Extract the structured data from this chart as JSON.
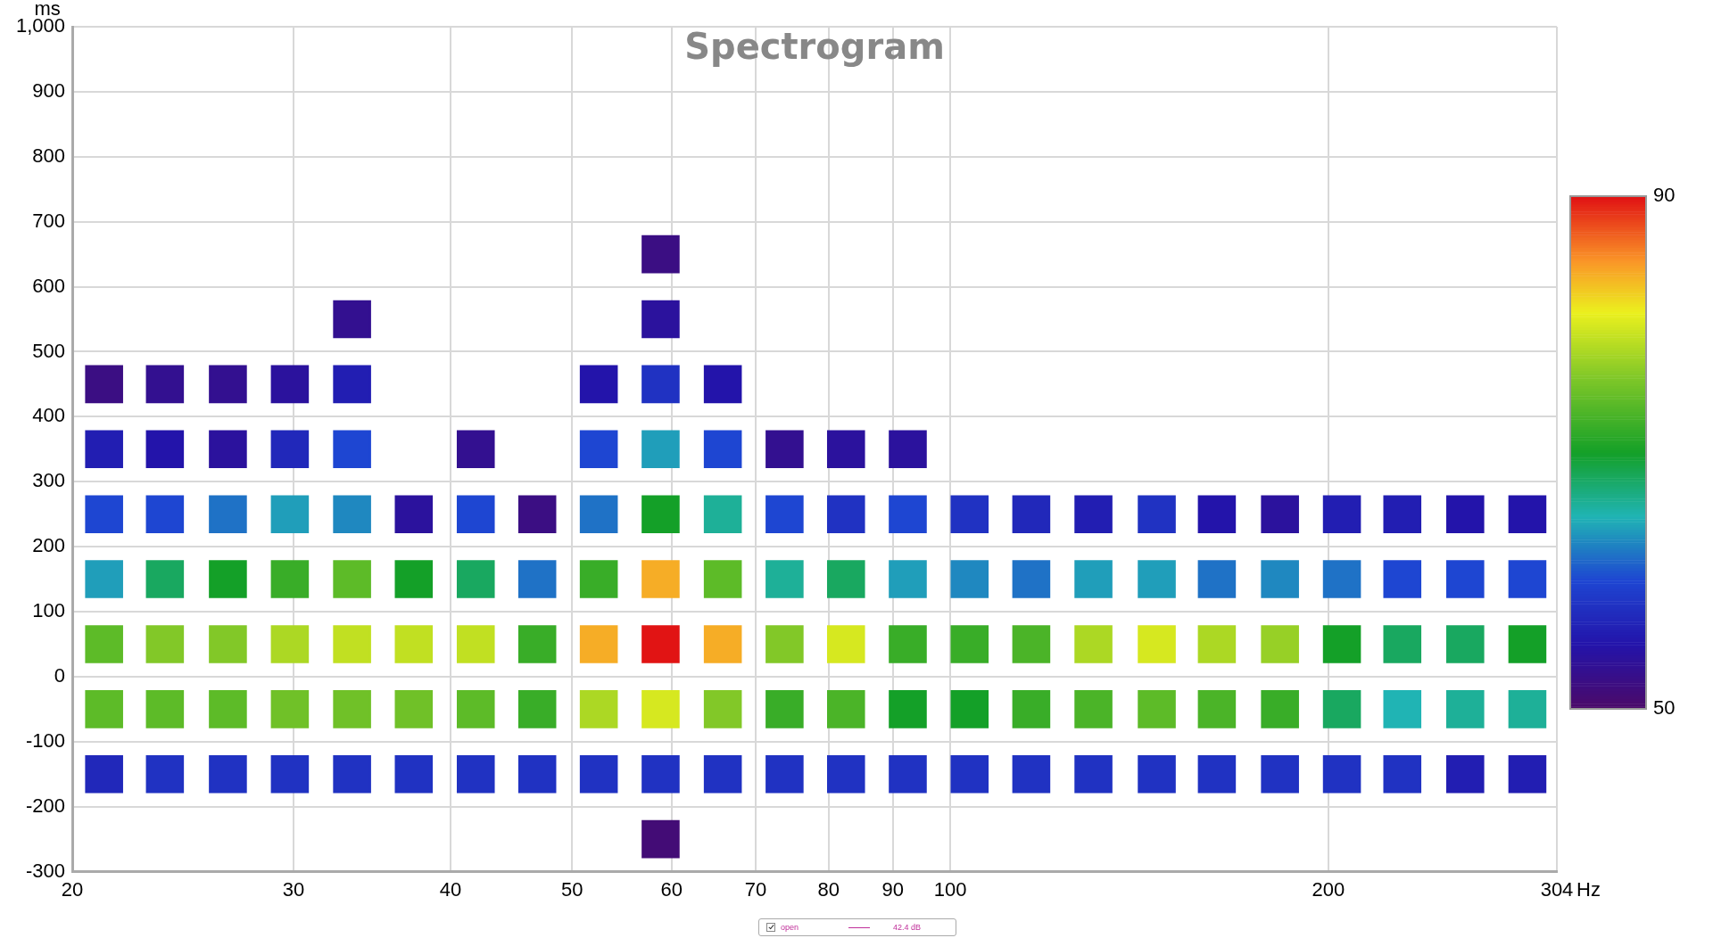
{
  "chart_data": {
    "type": "scatter",
    "title": "Spectrogram",
    "xlabel": "Hz",
    "ylabel": "ms",
    "log": "x",
    "grid": true,
    "marker": "square",
    "xlim": [
      20,
      304
    ],
    "xticks": [
      20,
      30,
      40,
      50,
      60,
      70,
      80,
      90,
      100,
      200,
      304
    ],
    "ylim": [
      -300,
      1000
    ],
    "yticks": [
      -300,
      -200,
      -100,
      0,
      100,
      200,
      300,
      400,
      500,
      600,
      700,
      800,
      900,
      {
        "value": 1000,
        "label": "1,000"
      }
    ],
    "clim": [
      50,
      90
    ],
    "cticks": [
      50,
      90
    ],
    "annotations": [
      "open",
      "42.4 dB"
    ],
    "series": [
      {
        "x": [
          58.8
        ],
        "values": [
          650
        ],
        "colors": [
          "#3b0e83"
        ],
        "cvalues": [
          52
        ]
      },
      {
        "x": [
          33.4,
          58.8
        ],
        "values": [
          550,
          550
        ],
        "colors": [
          "#331090",
          "#2b129d"
        ],
        "cvalues": [
          53,
          54
        ]
      },
      {
        "x": [
          21.2,
          23.7,
          26.6,
          29.8,
          33.4,
          52.5,
          58.8,
          65.9
        ],
        "values": [
          450,
          450,
          450,
          450,
          450,
          450,
          450,
          450
        ],
        "colors": [
          "#3b0e83",
          "#331090",
          "#331090",
          "#2b129d",
          "#221eb2",
          "#2314aa",
          "#2032c2",
          "#2314aa"
        ],
        "cvalues": [
          52,
          53,
          53,
          54,
          56,
          55,
          58,
          55
        ]
      },
      {
        "x": [
          21.2,
          23.7,
          26.6,
          29.8,
          33.4,
          41.9,
          52.5,
          58.8,
          65.9,
          73.8,
          82.6,
          92.5
        ],
        "values": [
          350,
          350,
          350,
          350,
          350,
          350,
          350,
          350,
          350,
          350,
          350,
          350
        ],
        "colors": [
          "#221eb2",
          "#2314aa",
          "#2b129d",
          "#2128ba",
          "#1e46d2",
          "#331090",
          "#1e46d2",
          "#209eba",
          "#1e46d2",
          "#331090",
          "#2b129d",
          "#2b129d"
        ],
        "cvalues": [
          56,
          55,
          54,
          57,
          60,
          53,
          60,
          64,
          60,
          53,
          54,
          54
        ]
      },
      {
        "x": [
          21.2,
          23.7,
          26.6,
          29.8,
          33.4,
          37.4,
          41.9,
          46.9,
          52.5,
          58.8,
          65.9,
          73.8,
          82.6,
          92.5,
          103.6,
          116,
          130,
          146,
          163,
          183,
          205,
          229,
          257,
          288
        ],
        "values": [
          250,
          250,
          250,
          250,
          250,
          250,
          250,
          250,
          250,
          250,
          250,
          250,
          250,
          250,
          250,
          250,
          250,
          250,
          250,
          250,
          250,
          250,
          250,
          250
        ],
        "colors": [
          "#1e46d2",
          "#1e46d2",
          "#1f72c6",
          "#209eba",
          "#1f88c0",
          "#2b129d",
          "#1e46d2",
          "#3b0e83",
          "#1f72c6",
          "#14a028",
          "#1eb098",
          "#1e46d2",
          "#2032c2",
          "#1e46d2",
          "#2032c2",
          "#2128ba",
          "#221eb2",
          "#2032c2",
          "#2314aa",
          "#2b129d",
          "#221eb2",
          "#221eb2",
          "#2314aa",
          "#2314aa"
        ],
        "cvalues": [
          60,
          60,
          62,
          64,
          63,
          54,
          60,
          52,
          62,
          70,
          66,
          60,
          58,
          60,
          58,
          57,
          56,
          58,
          55,
          54,
          56,
          56,
          55,
          55
        ]
      },
      {
        "x": [
          21.2,
          23.7,
          26.6,
          29.8,
          33.4,
          37.4,
          41.9,
          46.9,
          52.5,
          58.8,
          65.9,
          73.8,
          82.6,
          92.5,
          103.6,
          116,
          130,
          146,
          163,
          183,
          205,
          229,
          257,
          288
        ],
        "values": [
          150,
          150,
          150,
          150,
          150,
          150,
          150,
          150,
          150,
          150,
          150,
          150,
          150,
          150,
          150,
          150,
          150,
          150,
          150,
          150,
          150,
          150,
          150,
          150
        ],
        "colors": [
          "#209eba",
          "#19a860",
          "#14a028",
          "#39ad28",
          "#5dbb28",
          "#14a028",
          "#19a860",
          "#1f72c6",
          "#39ad28",
          "#f6ad26",
          "#5dbb28",
          "#1eb098",
          "#19a860",
          "#209eba",
          "#1f88c0",
          "#1f72c6",
          "#209eba",
          "#209eba",
          "#1f72c6",
          "#1f88c0",
          "#1f72c6",
          "#1e46d2",
          "#1e46d2",
          "#1e46d2"
        ],
        "cvalues": [
          64,
          68,
          70,
          72,
          74,
          70,
          68,
          62,
          72,
          84,
          74,
          66,
          68,
          64,
          63,
          62,
          64,
          64,
          62,
          63,
          62,
          60,
          60,
          60
        ]
      },
      {
        "x": [
          21.2,
          23.7,
          26.6,
          29.8,
          33.4,
          37.4,
          41.9,
          46.9,
          52.5,
          58.8,
          65.9,
          73.8,
          82.6,
          92.5,
          103.6,
          116,
          130,
          146,
          163,
          183,
          205,
          229,
          257,
          288
        ],
        "values": [
          50,
          50,
          50,
          50,
          50,
          50,
          50,
          50,
          50,
          50,
          50,
          50,
          50,
          50,
          50,
          50,
          50,
          50,
          50,
          50,
          50,
          50,
          50,
          50
        ],
        "colors": [
          "#5dbb28",
          "#82c828",
          "#82c828",
          "#acd824",
          "#c1e022",
          "#c1e022",
          "#c1e022",
          "#39ad28",
          "#f6ad26",
          "#e11414",
          "#f6ad26",
          "#82c828",
          "#d6e820",
          "#39ad28",
          "#39ad28",
          "#4bb428",
          "#acd824",
          "#d6e820",
          "#acd824",
          "#97d026",
          "#14a028",
          "#19a860",
          "#19a860",
          "#14a028"
        ],
        "cvalues": [
          74,
          76,
          76,
          78,
          79,
          79,
          79,
          72,
          84,
          90,
          84,
          76,
          80,
          72,
          72,
          73,
          78,
          80,
          78,
          77,
          70,
          68,
          68,
          70
        ]
      },
      {
        "x": [
          21.2,
          23.7,
          26.6,
          29.8,
          33.4,
          37.4,
          41.9,
          46.9,
          52.5,
          58.8,
          65.9,
          73.8,
          82.6,
          92.5,
          103.6,
          116,
          130,
          146,
          163,
          183,
          205,
          229,
          257,
          288
        ],
        "values": [
          -50,
          -50,
          -50,
          -50,
          -50,
          -50,
          -50,
          -50,
          -50,
          -50,
          -50,
          -50,
          -50,
          -50,
          -50,
          -50,
          -50,
          -50,
          -50,
          -50,
          -50,
          -50,
          -50,
          -50
        ],
        "colors": [
          "#5dbb28",
          "#5dbb28",
          "#5dbb28",
          "#70c128",
          "#70c128",
          "#70c128",
          "#5dbb28",
          "#39ad28",
          "#acd824",
          "#d6e820",
          "#82c828",
          "#39ad28",
          "#4bb428",
          "#14a028",
          "#14a028",
          "#39ad28",
          "#4bb428",
          "#5dbb28",
          "#4bb428",
          "#39ad28",
          "#19a860",
          "#20b4b4",
          "#1eb098",
          "#1eb098"
        ],
        "cvalues": [
          74,
          74,
          74,
          75,
          75,
          75,
          74,
          72,
          78,
          80,
          76,
          72,
          73,
          70,
          70,
          72,
          73,
          74,
          73,
          72,
          68,
          65,
          66,
          66
        ]
      },
      {
        "x": [
          21.2,
          23.7,
          26.6,
          29.8,
          33.4,
          37.4,
          41.9,
          46.9,
          52.5,
          58.8,
          65.9,
          73.8,
          82.6,
          92.5,
          103.6,
          116,
          130,
          146,
          163,
          183,
          205,
          229,
          257,
          288
        ],
        "values": [
          -150,
          -150,
          -150,
          -150,
          -150,
          -150,
          -150,
          -150,
          -150,
          -150,
          -150,
          -150,
          -150,
          -150,
          -150,
          -150,
          -150,
          -150,
          -150,
          -150,
          -150,
          -150,
          -150,
          -150
        ],
        "colors": [
          "#2128ba",
          "#2032c2",
          "#2032c2",
          "#2032c2",
          "#2032c2",
          "#2032c2",
          "#2032c2",
          "#2032c2",
          "#2032c2",
          "#2032c2",
          "#2032c2",
          "#2032c2",
          "#2032c2",
          "#2032c2",
          "#2032c2",
          "#2032c2",
          "#2032c2",
          "#2032c2",
          "#2032c2",
          "#2032c2",
          "#2032c2",
          "#2032c2",
          "#221eb2",
          "#221eb2"
        ],
        "cvalues": [
          57,
          58,
          58,
          58,
          58,
          58,
          58,
          58,
          58,
          58,
          58,
          58,
          58,
          58,
          58,
          58,
          58,
          58,
          58,
          58,
          58,
          58,
          56,
          56
        ]
      },
      {
        "x": [
          58.8
        ],
        "values": [
          -250
        ],
        "colors": [
          "#430c76"
        ],
        "cvalues": [
          51
        ]
      }
    ]
  }
}
